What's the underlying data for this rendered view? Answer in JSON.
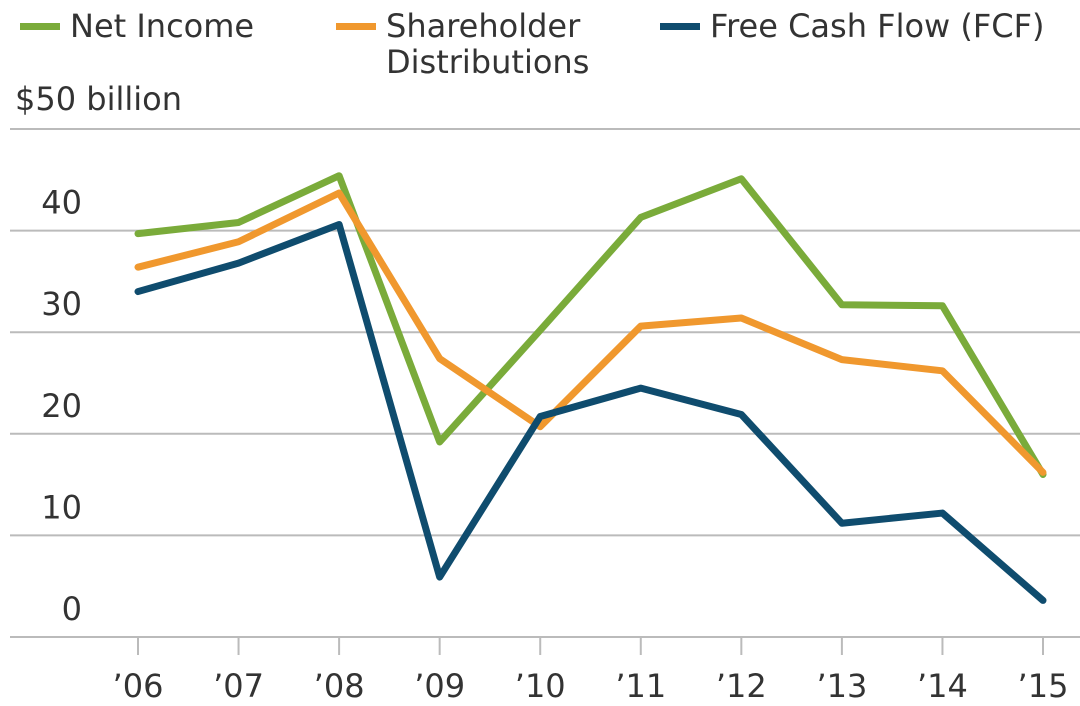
{
  "chart_data": {
    "type": "line",
    "categories": [
      "’06",
      "’07",
      "’08",
      "’09",
      "’10",
      "’11",
      "’12",
      "’13",
      "’14",
      "’15"
    ],
    "series": [
      {
        "name": "Net Income",
        "color": "#7aab3a",
        "values": [
          39.7,
          40.8,
          45.4,
          19.2,
          30.2,
          41.3,
          45.1,
          32.7,
          32.6,
          16.0
        ]
      },
      {
        "name": "Shareholder Distributions",
        "color": "#f0982e",
        "values": [
          36.4,
          38.9,
          43.7,
          27.4,
          20.7,
          30.6,
          31.4,
          27.3,
          26.2,
          16.2
        ]
      },
      {
        "name": "Free Cash Flow (FCF)",
        "color": "#0f4c6e",
        "values": [
          34.0,
          36.8,
          40.6,
          5.9,
          21.7,
          24.5,
          21.9,
          11.2,
          12.2,
          3.6
        ]
      }
    ],
    "ylim": [
      0,
      50
    ],
    "yticks": [
      0,
      10,
      20,
      30,
      40,
      {
        "value": 50,
        "label": "$50 billion"
      }
    ],
    "grid": true
  }
}
